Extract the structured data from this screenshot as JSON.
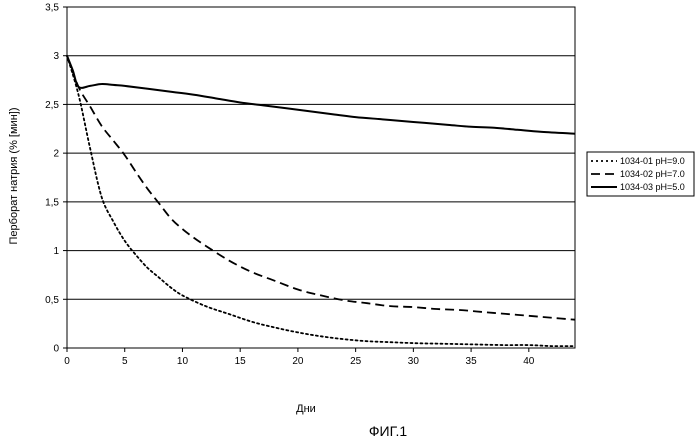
{
  "chart_data": {
    "type": "line",
    "xlabel": "Дни",
    "ylabel": "Перборат натрия (% [мин])",
    "xlim": [
      0,
      44
    ],
    "ylim": [
      0,
      3.5
    ],
    "x_ticks": [
      "0",
      "5",
      "10",
      "15",
      "20",
      "25",
      "30",
      "35",
      "40"
    ],
    "y_ticks": [
      "0",
      "0,5",
      "1",
      "1,5",
      "2",
      "2,5",
      "3",
      "3,5"
    ],
    "grid": "horizontal",
    "legend_position": "right",
    "caption": "ФИГ.1",
    "series": [
      {
        "name": "1034-01 pH=9.0",
        "style": "dotted",
        "points": [
          [
            0,
            3.0
          ],
          [
            1,
            2.6
          ],
          [
            2,
            2.05
          ],
          [
            3,
            1.55
          ],
          [
            4,
            1.3
          ],
          [
            5,
            1.1
          ],
          [
            6,
            0.95
          ],
          [
            7,
            0.82
          ],
          [
            8,
            0.72
          ],
          [
            9,
            0.62
          ],
          [
            10,
            0.54
          ],
          [
            12,
            0.43
          ],
          [
            14,
            0.35
          ],
          [
            16,
            0.27
          ],
          [
            18,
            0.21
          ],
          [
            20,
            0.16
          ],
          [
            22,
            0.12
          ],
          [
            24,
            0.09
          ],
          [
            26,
            0.07
          ],
          [
            28,
            0.06
          ],
          [
            30,
            0.05
          ],
          [
            32,
            0.045
          ],
          [
            34,
            0.04
          ],
          [
            36,
            0.035
          ],
          [
            38,
            0.03
          ],
          [
            40,
            0.03
          ],
          [
            42,
            0.02
          ],
          [
            44,
            0.02
          ]
        ]
      },
      {
        "name": "1034-02 pH=7.0",
        "style": "dashed",
        "points": [
          [
            0,
            3.0
          ],
          [
            1,
            2.68
          ],
          [
            2,
            2.48
          ],
          [
            3,
            2.28
          ],
          [
            4,
            2.13
          ],
          [
            5,
            1.98
          ],
          [
            6,
            1.8
          ],
          [
            7,
            1.63
          ],
          [
            8,
            1.48
          ],
          [
            9,
            1.33
          ],
          [
            10,
            1.22
          ],
          [
            11,
            1.13
          ],
          [
            12,
            1.05
          ],
          [
            14,
            0.9
          ],
          [
            16,
            0.78
          ],
          [
            18,
            0.69
          ],
          [
            20,
            0.6
          ],
          [
            22,
            0.54
          ],
          [
            24,
            0.49
          ],
          [
            26,
            0.46
          ],
          [
            28,
            0.43
          ],
          [
            30,
            0.42
          ],
          [
            32,
            0.4
          ],
          [
            34,
            0.39
          ],
          [
            36,
            0.37
          ],
          [
            38,
            0.35
          ],
          [
            40,
            0.33
          ],
          [
            42,
            0.31
          ],
          [
            44,
            0.29
          ]
        ]
      },
      {
        "name": "1034-03 pH=5.0",
        "style": "solid",
        "points": [
          [
            0,
            3.0
          ],
          [
            0.5,
            2.85
          ],
          [
            1,
            2.68
          ],
          [
            2,
            2.69
          ],
          [
            3,
            2.71
          ],
          [
            4,
            2.7
          ],
          [
            5,
            2.69
          ],
          [
            7,
            2.66
          ],
          [
            9,
            2.63
          ],
          [
            11,
            2.6
          ],
          [
            13,
            2.56
          ],
          [
            15,
            2.52
          ],
          [
            17,
            2.49
          ],
          [
            19,
            2.46
          ],
          [
            21,
            2.43
          ],
          [
            23,
            2.4
          ],
          [
            25,
            2.37
          ],
          [
            27,
            2.35
          ],
          [
            29,
            2.33
          ],
          [
            31,
            2.31
          ],
          [
            33,
            2.29
          ],
          [
            35,
            2.27
          ],
          [
            37,
            2.26
          ],
          [
            39,
            2.24
          ],
          [
            41,
            2.22
          ],
          [
            44,
            2.2
          ]
        ]
      }
    ]
  }
}
